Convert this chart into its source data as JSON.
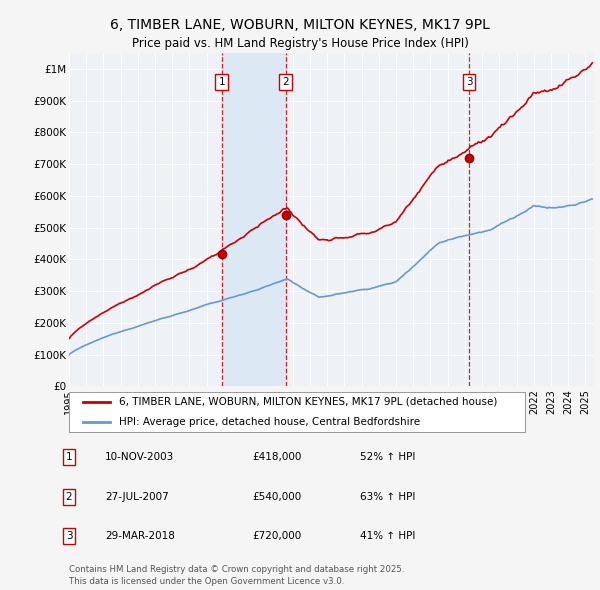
{
  "title_line1": "6, TIMBER LANE, WOBURN, MILTON KEYNES, MK17 9PL",
  "title_line2": "Price paid vs. HM Land Registry's House Price Index (HPI)",
  "background_color": "#f5f5f5",
  "plot_bg_color": "#eef2f7",
  "grid_color": "#ffffff",
  "red_line_color": "#cc0000",
  "blue_line_color": "#6699cc",
  "shade_color": "#dde8f5",
  "ylim": [
    0,
    1050000
  ],
  "yticks": [
    0,
    100000,
    200000,
    300000,
    400000,
    500000,
    600000,
    700000,
    800000,
    900000,
    1000000
  ],
  "ytick_labels": [
    "£0",
    "£100K",
    "£200K",
    "£300K",
    "£400K",
    "£500K",
    "£600K",
    "£700K",
    "£800K",
    "£900K",
    "£1M"
  ],
  "xlim_start": 1995.0,
  "xlim_end": 2025.5,
  "xtick_years": [
    1995,
    1996,
    1997,
    1998,
    1999,
    2000,
    2001,
    2002,
    2003,
    2004,
    2005,
    2006,
    2007,
    2008,
    2009,
    2010,
    2011,
    2012,
    2013,
    2014,
    2015,
    2016,
    2017,
    2018,
    2019,
    2020,
    2021,
    2022,
    2023,
    2024,
    2025
  ],
  "sales": [
    {
      "label": "1",
      "date": 2003.87,
      "price": 418000,
      "pct": "52%",
      "date_str": "10-NOV-2003",
      "price_str": "£418,000"
    },
    {
      "label": "2",
      "date": 2007.58,
      "price": 540000,
      "pct": "63%",
      "date_str": "27-JUL-2007",
      "price_str": "£540,000"
    },
    {
      "label": "3",
      "date": 2018.25,
      "price": 720000,
      "pct": "41%",
      "date_str": "29-MAR-2018",
      "price_str": "£720,000"
    }
  ],
  "legend_label_red": "6, TIMBER LANE, WOBURN, MILTON KEYNES, MK17 9PL (detached house)",
  "legend_label_blue": "HPI: Average price, detached house, Central Bedfordshire",
  "footnote": "Contains HM Land Registry data © Crown copyright and database right 2025.\nThis data is licensed under the Open Government Licence v3.0."
}
